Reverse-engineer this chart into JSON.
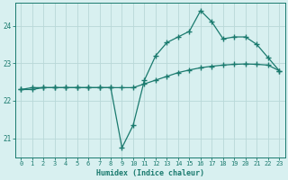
{
  "line1_x": [
    0,
    1,
    2,
    3,
    4,
    5,
    6,
    7,
    8,
    9,
    10,
    11,
    12,
    13,
    14,
    15,
    16,
    17,
    18,
    19,
    20,
    21,
    22,
    23
  ],
  "line1_y": [
    22.3,
    22.35,
    22.35,
    22.35,
    22.35,
    22.35,
    22.35,
    22.35,
    22.35,
    22.35,
    22.35,
    22.45,
    22.55,
    22.65,
    22.75,
    22.82,
    22.88,
    22.92,
    22.95,
    22.97,
    22.98,
    22.97,
    22.95,
    22.8
  ],
  "line2_x": [
    0,
    1,
    2,
    3,
    4,
    5,
    6,
    7,
    8,
    9,
    10,
    11,
    12,
    13,
    14,
    15,
    16,
    17,
    18,
    19,
    20,
    21,
    22,
    23
  ],
  "line2_y": [
    22.3,
    22.3,
    22.35,
    22.35,
    22.35,
    22.35,
    22.35,
    22.35,
    22.35,
    20.75,
    21.35,
    22.55,
    23.2,
    23.55,
    23.7,
    23.85,
    24.4,
    24.1,
    23.65,
    23.7,
    23.7,
    23.5,
    23.15,
    22.8
  ],
  "line_color": "#1a7a6e",
  "bg_color": "#d8f0f0",
  "grid_color": "#b8d8d8",
  "xlabel": "Humidex (Indice chaleur)",
  "ylim": [
    20.5,
    24.6
  ],
  "xlim": [
    -0.5,
    23.5
  ],
  "yticks": [
    21,
    22,
    23,
    24
  ],
  "xticks": [
    0,
    1,
    2,
    3,
    4,
    5,
    6,
    7,
    8,
    9,
    10,
    11,
    12,
    13,
    14,
    15,
    16,
    17,
    18,
    19,
    20,
    21,
    22,
    23
  ],
  "marker": "+",
  "markersize": 4,
  "linewidth": 0.9,
  "tick_fontsize": 5.0,
  "xlabel_fontsize": 6.0
}
